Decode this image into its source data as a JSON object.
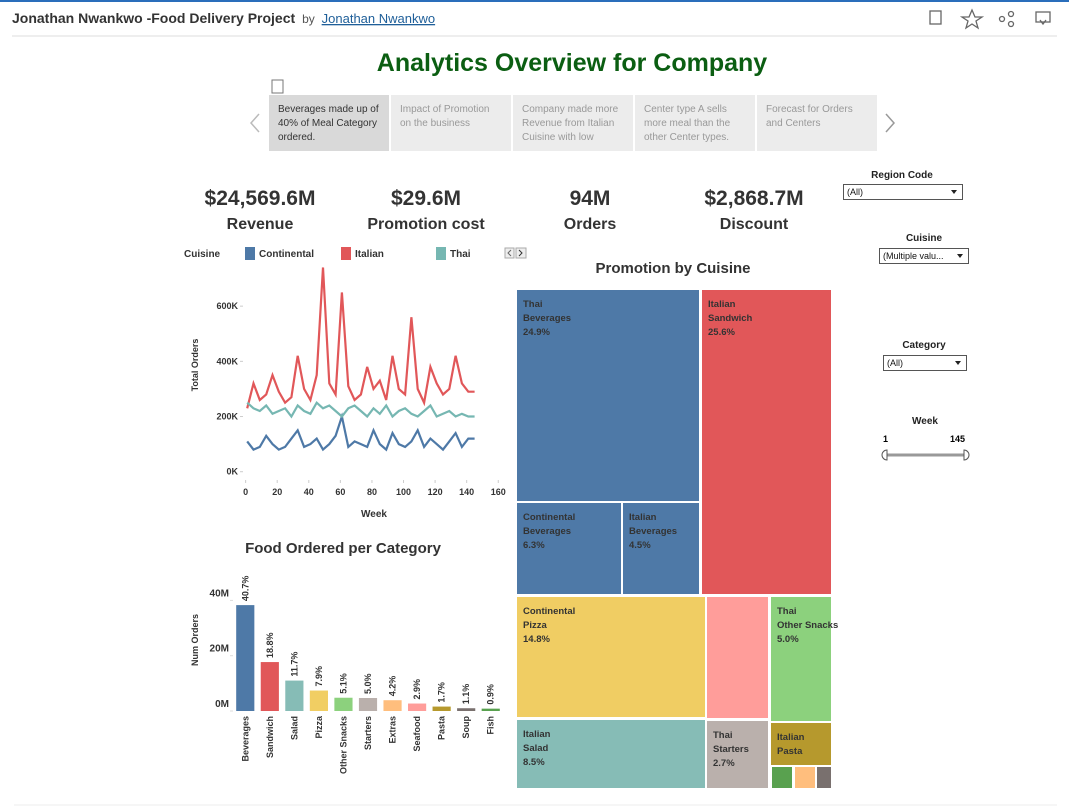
{
  "header": {
    "title": "Jonathan Nwankwo -Food Delivery Project",
    "by": "by",
    "author": "Jonathan Nwankwo"
  },
  "dashboard_title": "Analytics Overview for Company",
  "story_points": [
    "Beverages made up of 40% of Meal Category ordered.",
    "Impact of Promotion on the business",
    "Company made more Revenue from Italian Cuisine with low",
    "Center type A sells more meal than the other Center types.",
    "Forecast for Orders and Centers"
  ],
  "kpis": [
    {
      "value": "$24,569.6M",
      "label": "Revenue"
    },
    {
      "value": "$29.6M",
      "label": "Promotion cost"
    },
    {
      "value": "94M",
      "label": "Orders"
    },
    {
      "value": "$2,868.7M",
      "label": "Discount"
    }
  ],
  "filters": {
    "region": {
      "label": "Region Code",
      "value": "(All)"
    },
    "cuisine": {
      "label": "Cuisine",
      "value": "(Multiple valu..."
    },
    "category": {
      "label": "Category",
      "value": "(All)"
    },
    "week": {
      "label": "Week",
      "min": 1,
      "max": 145
    }
  },
  "chart_data": [
    {
      "type": "line",
      "legend_title": "Cuisine",
      "x_label": "Week",
      "y_label": "Total Orders",
      "x": [
        1,
        5,
        9,
        13,
        17,
        21,
        25,
        29,
        33,
        37,
        41,
        45,
        49,
        53,
        57,
        61,
        65,
        69,
        73,
        77,
        81,
        85,
        89,
        93,
        97,
        101,
        105,
        109,
        113,
        117,
        121,
        125,
        129,
        133,
        137,
        141,
        145
      ],
      "series": [
        {
          "name": "Continental",
          "color": "#4e79a7",
          "values": [
            110000,
            80000,
            90000,
            130000,
            100000,
            80000,
            90000,
            120000,
            150000,
            90000,
            100000,
            120000,
            80000,
            100000,
            130000,
            200000,
            90000,
            110000,
            100000,
            90000,
            150000,
            100000,
            80000,
            140000,
            100000,
            90000,
            110000,
            150000,
            90000,
            120000,
            100000,
            80000,
            110000,
            140000,
            90000,
            120000,
            120000
          ]
        },
        {
          "name": "Italian",
          "color": "#e15759",
          "values": [
            230000,
            320000,
            260000,
            280000,
            350000,
            290000,
            250000,
            270000,
            420000,
            300000,
            260000,
            350000,
            740000,
            320000,
            280000,
            650000,
            310000,
            260000,
            280000,
            380000,
            300000,
            330000,
            260000,
            420000,
            300000,
            280000,
            560000,
            300000,
            250000,
            380000,
            320000,
            280000,
            300000,
            420000,
            320000,
            290000,
            290000
          ]
        },
        {
          "name": "Thai",
          "color": "#76b7b2",
          "values": [
            250000,
            230000,
            220000,
            240000,
            210000,
            220000,
            230000,
            200000,
            240000,
            220000,
            210000,
            250000,
            230000,
            240000,
            220000,
            200000,
            230000,
            240000,
            220000,
            200000,
            230000,
            210000,
            240000,
            200000,
            220000,
            230000,
            210000,
            200000,
            220000,
            240000,
            200000,
            210000,
            220000,
            200000,
            210000,
            200000,
            200000
          ]
        }
      ],
      "xlim": [
        -8,
        163
      ],
      "xticks": [
        0,
        20,
        40,
        60,
        80,
        100,
        120,
        140,
        160
      ],
      "ylim": [
        -30000,
        760000
      ],
      "yticks": [
        {
          "value": 0,
          "label": "0K"
        },
        {
          "value": 200000,
          "label": "200K"
        },
        {
          "value": 400000,
          "label": "400K"
        },
        {
          "value": 600000,
          "label": "600K"
        }
      ],
      "grid": false
    },
    {
      "type": "bar",
      "title": "Food Ordered per Category",
      "y_label": "Num Orders",
      "categories": [
        "Beverages",
        "Sandwich",
        "Salad",
        "Pizza",
        "Other Snacks",
        "Starters",
        "Extras",
        "Seafood",
        "Pasta",
        "Soup",
        "Fish"
      ],
      "values": [
        38300000,
        17700000,
        11000000,
        7400000,
        4800000,
        4700000,
        3900000,
        2700000,
        1600000,
        1000000,
        850000
      ],
      "share_labels": [
        "40.7%",
        "18.8%",
        "11.7%",
        "7.9%",
        "5.1%",
        "5.0%",
        "4.2%",
        "2.9%",
        "1.7%",
        "1.1%",
        "0.9%"
      ],
      "colors": [
        "#4e79a7",
        "#e15759",
        "#86bcb6",
        "#f1ce63",
        "#8cd17d",
        "#bab0ac",
        "#ffbe7d",
        "#ff9d9a",
        "#b6992d",
        "#79706e",
        "#59a14f"
      ],
      "ylim": [
        0,
        51000000
      ],
      "yticks": [
        {
          "value": 0,
          "label": "0M"
        },
        {
          "value": 20000000,
          "label": "20M"
        },
        {
          "value": 40000000,
          "label": "40M"
        }
      ]
    },
    {
      "type": "treemap",
      "title": "Promotion by Cuisine",
      "groups": [
        "Thai",
        "Italian",
        "Continental",
        "Italian",
        "Continental",
        "Italian",
        null,
        "Thai",
        "Thai",
        "Italian",
        null,
        null,
        null
      ],
      "categories": [
        "Beverages",
        "Sandwich",
        "Beverages",
        "Beverages",
        "Pizza",
        "Salad",
        null,
        "Other Snacks",
        "Starters",
        "Pasta",
        null,
        null,
        null
      ],
      "values": [
        24.9,
        25.6,
        6.3,
        4.5,
        14.8,
        8.5,
        4.7,
        5.0,
        2.7,
        1.6,
        0.3,
        0.3,
        0.2
      ],
      "value_labels": [
        "24.9%",
        "25.6%",
        "6.3%",
        "4.5%",
        "14.8%",
        "8.5%",
        null,
        "5.0%",
        "2.7%",
        null,
        null,
        null,
        null
      ],
      "colors": [
        "#4e79a7",
        "#e15759",
        "#4e79a7",
        "#4e79a7",
        "#f0cd63",
        "#86bcb6",
        "#ff9d9a",
        "#8cd17d",
        "#bab0ac",
        "#b6992d",
        "#59a14f",
        "#ffbe7d",
        "#79706e"
      ]
    }
  ]
}
